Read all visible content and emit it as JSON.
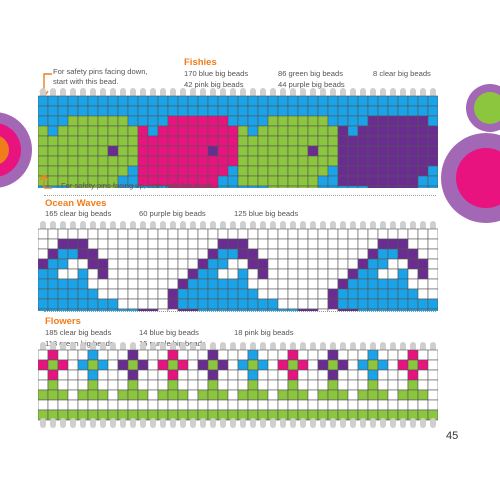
{
  "colors": {
    "clear": "#ffffff",
    "blue": "#1aa3e8",
    "pink": "#e8137f",
    "green": "#8cc63f",
    "purple": "#6a2c91",
    "grid": "#555555",
    "pin": "#cfcfcf",
    "accent": "#f07d1b"
  },
  "notes": {
    "pins_down": [
      "For safety pins facing down,",
      "start with this bead."
    ],
    "pins_up": "For safety pins facing up, start with this bead."
  },
  "sections": [
    {
      "title": "Fishies",
      "counts": [
        {
          "text": "170 blue big beads"
        },
        {
          "text": "42 pink big beads"
        },
        {
          "text": "86 green big beads"
        },
        {
          "text": "44 purple big beads"
        },
        {
          "text": "8 clear big beads"
        }
      ]
    },
    {
      "title": "Ocean Waves",
      "counts": [
        {
          "text": "165 clear big beads"
        },
        {
          "text": "60 purple big beads"
        },
        {
          "text": "125 blue big beads"
        }
      ]
    },
    {
      "title": "Flowers",
      "counts": [
        {
          "text": "185 clear big beads"
        },
        {
          "text": "118 green big beads"
        },
        {
          "text": "14 blue big beads"
        },
        {
          "text": "15 purple big beads"
        },
        {
          "text": "18 pink big beads"
        }
      ]
    }
  ],
  "patterns": {
    "fishies": {
      "columns": 40,
      "tile": [
        "BBBBBBBBBBBBBBBBBBBBBBBB",
        "BBBBBBBBBBBBBBBBBBBBBBBB",
        "BBBBBBBBBBBBBBBBBPPPPPPB",
        "BBBBBBBBBBBBBBBBPPPPPPPP",
        "BBBBBBBBBBBBBBPPPPPPPPPP",
        "BBBBBBBBBBBPPPPPPPPPPCPP",
        "BBBBBBBBBBBPPPPPPPPPPPPP",
        "BBBBBBBBBBBBBPPPPPPPPPPB",
        "BBBBBBBBBBBBBBBPPPPPPPBB",
        "BBBBBBBBBBBBBBBBBPPPPPBB",
        "BBBBBBBBBBBBBBBBBBBBBBBB",
        "BBBBBBBBBBBBBBBBBBBBBBBB"
      ],
      "tile_palette": "pink"
    },
    "waves": {
      "columns": 40,
      "tile": [
        "WWWWWWWWWWWWWWWW",
        "WWWWWWWWWWWWWWWW",
        "WWWWWWWWWWWWWWWW",
        "WWWWWPPPWWWWWWWW",
        "WWWWPBBPPWWWWWWW",
        "WWWPBBWWPPWWWWWW",
        "WWPBBWWBWPWWWWWW",
        "WPBBBBBBWWWWWWWW",
        "PBBBBBBBBWWWWWWW",
        "PBBBBBBBBBBWWWWW",
        "WPPBBBBBBBBBBPPW",
        "WWWPPPPPPPPPPWWW"
      ]
    },
    "flowers": {
      "columns": 40,
      "flower_colors": [
        "pink",
        "blue",
        "purple",
        "pink",
        "purple",
        "blue",
        "pink",
        "purple",
        "blue",
        "pink"
      ]
    }
  },
  "page_number": "45"
}
